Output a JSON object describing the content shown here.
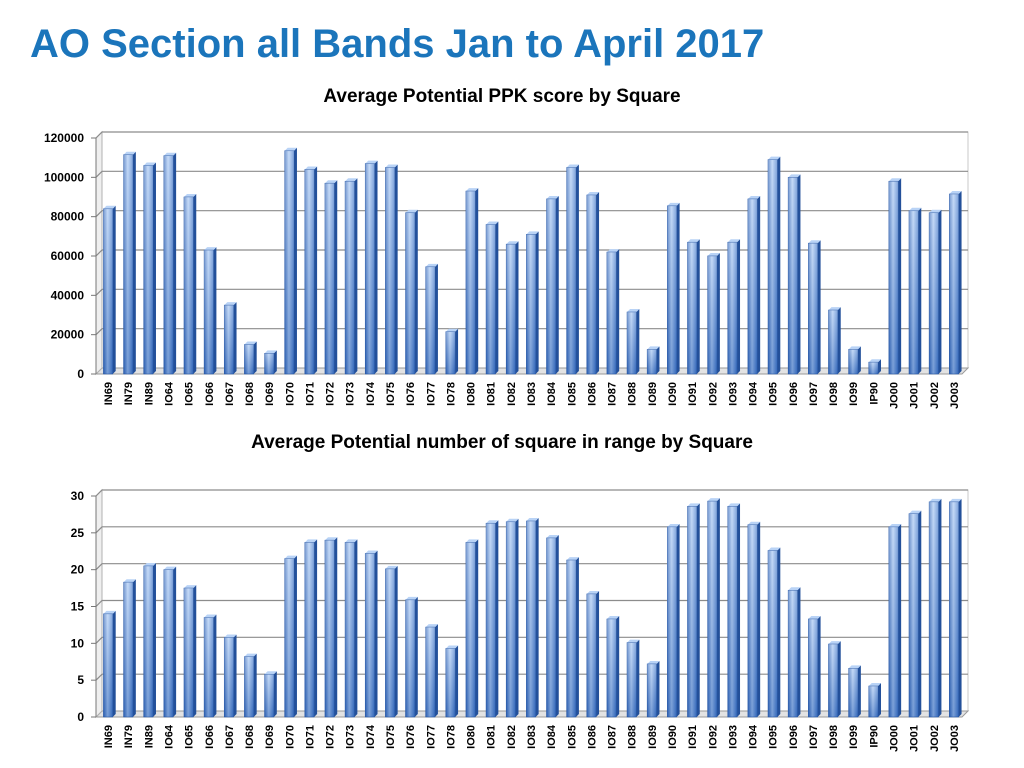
{
  "page": {
    "title": "AO Section all Bands Jan to April 2017"
  },
  "chart_data": [
    {
      "type": "bar",
      "title": "Average Potential PPK score by Square",
      "xlabel": "",
      "ylabel": "",
      "ylim": [
        0,
        120000
      ],
      "yticks": [
        "0",
        "20000",
        "40000",
        "60000",
        "80000",
        "100000",
        "120000"
      ],
      "grid": true,
      "bar_color": "#4a86d8",
      "categories": [
        "IN69",
        "IN79",
        "IN89",
        "IO64",
        "IO65",
        "IO66",
        "IO67",
        "IO68",
        "IO69",
        "IO70",
        "IO71",
        "IO72",
        "IO73",
        "IO74",
        "IO75",
        "IO76",
        "IO77",
        "IO78",
        "IO80",
        "IO81",
        "IO82",
        "IO83",
        "IO84",
        "IO85",
        "IO86",
        "IO87",
        "IO88",
        "IO89",
        "IO90",
        "IO91",
        "IO92",
        "IO93",
        "IO94",
        "IO95",
        "IO96",
        "IO97",
        "IO98",
        "IO99",
        "IP90",
        "JO00",
        "JO01",
        "JO02",
        "JO03"
      ],
      "values": [
        84000,
        111500,
        106000,
        111000,
        90000,
        63000,
        35000,
        15000,
        10500,
        113500,
        104000,
        97000,
        98000,
        107000,
        105000,
        82000,
        54500,
        21500,
        93000,
        76000,
        66000,
        71000,
        89000,
        105000,
        91000,
        62000,
        31500,
        12500,
        85500,
        67000,
        60000,
        67000,
        89000,
        109000,
        100000,
        66500,
        32500,
        12500,
        6000,
        98000,
        83000,
        82000,
        91500
      ]
    },
    {
      "type": "bar",
      "title": "Average Potential number of square in range by Square",
      "xlabel": "",
      "ylabel": "",
      "ylim": [
        0,
        30
      ],
      "yticks": [
        "0",
        "5",
        "10",
        "15",
        "20",
        "25",
        "30"
      ],
      "grid": true,
      "bar_color": "#4a86d8",
      "categories": [
        "IN69",
        "IN79",
        "IN89",
        "IO64",
        "IO65",
        "IO66",
        "IO67",
        "IO68",
        "IO69",
        "IO70",
        "IO71",
        "IO72",
        "IO73",
        "IO74",
        "IO75",
        "IO76",
        "IO77",
        "IO78",
        "IO80",
        "IO81",
        "IO82",
        "IO83",
        "IO84",
        "IO85",
        "IO86",
        "IO87",
        "IO88",
        "IO89",
        "IO90",
        "IO91",
        "IO92",
        "IO93",
        "IO94",
        "IO95",
        "IO96",
        "IO97",
        "IO98",
        "IO99",
        "IP90",
        "JO00",
        "JO01",
        "JO02",
        "JO03"
      ],
      "values": [
        14,
        18.3,
        20.5,
        20,
        17.5,
        13.5,
        10.8,
        8.2,
        5.8,
        21.5,
        23.7,
        24,
        23.7,
        22.2,
        20.1,
        15.9,
        12.2,
        9.3,
        23.7,
        26.3,
        26.5,
        26.6,
        24.3,
        21.3,
        16.7,
        13.3,
        10.1,
        7.2,
        25.8,
        28.6,
        29.3,
        28.6,
        26.1,
        22.6,
        17.2,
        13.3,
        9.9,
        6.6,
        4.2,
        25.8,
        27.6,
        29.2,
        29.2
      ]
    }
  ]
}
